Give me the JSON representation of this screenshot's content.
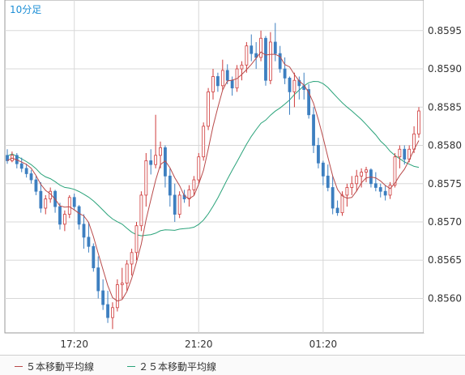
{
  "colors": {
    "up": "#cf3b3b",
    "down": "#3d7fc0",
    "ma5": "#b94a4a",
    "ma25": "#2aa37a",
    "grid": "#d8d8d8",
    "timeframe": "#1e8fd6"
  },
  "legend": [
    {
      "label": "５本移動平均線",
      "color": "#b94a4a"
    },
    {
      "label": "２５本移動平均線",
      "color": "#2aa37a"
    }
  ],
  "chart_data": {
    "type": "candlestick",
    "timeframe": "10分足",
    "x_ticks": [
      "17:20",
      "21:20",
      "01:20"
    ],
    "ylim": [
      0.85555,
      0.8599
    ],
    "y_ticks": [
      "0.8560",
      "0.8565",
      "0.8570",
      "0.8575",
      "0.8580",
      "0.8585",
      "0.8590",
      "0.8595"
    ],
    "grid": true,
    "ohlc": [
      [
        0.85787,
        0.85795,
        0.85776,
        0.8578
      ],
      [
        0.8578,
        0.85792,
        0.85778,
        0.85787
      ],
      [
        0.85787,
        0.8579,
        0.8577,
        0.85776
      ],
      [
        0.85776,
        0.85784,
        0.85765,
        0.8577
      ],
      [
        0.8577,
        0.85776,
        0.85758,
        0.85763
      ],
      [
        0.85763,
        0.85768,
        0.8575,
        0.85755
      ],
      [
        0.85755,
        0.8576,
        0.85735,
        0.8574
      ],
      [
        0.8574,
        0.85752,
        0.85712,
        0.85718
      ],
      [
        0.85718,
        0.85735,
        0.8571,
        0.8573
      ],
      [
        0.8573,
        0.85745,
        0.85725,
        0.8574
      ],
      [
        0.8574,
        0.85742,
        0.85712,
        0.8572
      ],
      [
        0.8572,
        0.85725,
        0.8569,
        0.85697
      ],
      [
        0.85697,
        0.85715,
        0.85688,
        0.8571
      ],
      [
        0.8571,
        0.85735,
        0.85705,
        0.85732
      ],
      [
        0.85732,
        0.85737,
        0.85715,
        0.8572
      ],
      [
        0.8572,
        0.85722,
        0.8569,
        0.85697
      ],
      [
        0.85697,
        0.8571,
        0.85665,
        0.8568
      ],
      [
        0.8568,
        0.857,
        0.8566,
        0.85668
      ],
      [
        0.85668,
        0.85672,
        0.85635,
        0.8564
      ],
      [
        0.8564,
        0.85655,
        0.856,
        0.8561
      ],
      [
        0.8561,
        0.85625,
        0.85585,
        0.85592
      ],
      [
        0.85592,
        0.8561,
        0.85568,
        0.85575
      ],
      [
        0.85575,
        0.85595,
        0.8556,
        0.85588
      ],
      [
        0.85588,
        0.85625,
        0.85583,
        0.85618
      ],
      [
        0.85618,
        0.8564,
        0.856,
        0.8562
      ],
      [
        0.8562,
        0.8565,
        0.8561,
        0.85645
      ],
      [
        0.85645,
        0.85665,
        0.8563,
        0.8566
      ],
      [
        0.8566,
        0.857,
        0.8565,
        0.85695
      ],
      [
        0.85695,
        0.8574,
        0.85688,
        0.85735
      ],
      [
        0.85735,
        0.8579,
        0.8572,
        0.8578
      ],
      [
        0.8578,
        0.85795,
        0.85762,
        0.85775
      ],
      [
        0.85775,
        0.8584,
        0.8577,
        0.85787
      ],
      [
        0.85787,
        0.85805,
        0.8577,
        0.85797
      ],
      [
        0.85797,
        0.858,
        0.85745,
        0.8576
      ],
      [
        0.8576,
        0.8577,
        0.8572,
        0.85735
      ],
      [
        0.85735,
        0.8575,
        0.857,
        0.8571
      ],
      [
        0.8571,
        0.8574,
        0.85705,
        0.85735
      ],
      [
        0.85735,
        0.85742,
        0.85725,
        0.8573
      ],
      [
        0.8573,
        0.85748,
        0.8572,
        0.85742
      ],
      [
        0.85742,
        0.8576,
        0.85735,
        0.85755
      ],
      [
        0.85755,
        0.8579,
        0.8575,
        0.85785
      ],
      [
        0.85785,
        0.8583,
        0.8578,
        0.85825
      ],
      [
        0.85825,
        0.85875,
        0.8582,
        0.8587
      ],
      [
        0.8587,
        0.859,
        0.8586,
        0.8589
      ],
      [
        0.8589,
        0.85895,
        0.8587,
        0.85878
      ],
      [
        0.85878,
        0.85912,
        0.85872,
        0.85898
      ],
      [
        0.85898,
        0.85906,
        0.8588,
        0.85885
      ],
      [
        0.85885,
        0.8589,
        0.85865,
        0.85875
      ],
      [
        0.85875,
        0.85905,
        0.8587,
        0.859
      ],
      [
        0.859,
        0.8591,
        0.85885,
        0.85905
      ],
      [
        0.85905,
        0.85935,
        0.85895,
        0.8593
      ],
      [
        0.8593,
        0.85945,
        0.8591,
        0.8592
      ],
      [
        0.8592,
        0.85935,
        0.859,
        0.85915
      ],
      [
        0.85915,
        0.8595,
        0.8591,
        0.8594
      ],
      [
        0.8594,
        0.85943,
        0.85878,
        0.85885
      ],
      [
        0.85885,
        0.85948,
        0.8588,
        0.85935
      ],
      [
        0.85935,
        0.8596,
        0.8591,
        0.8592
      ],
      [
        0.8592,
        0.8593,
        0.85895,
        0.859
      ],
      [
        0.859,
        0.85915,
        0.8588,
        0.85888
      ],
      [
        0.85888,
        0.8589,
        0.8584,
        0.8587
      ],
      [
        0.8587,
        0.85895,
        0.8585,
        0.85885
      ],
      [
        0.85885,
        0.8589,
        0.8586,
        0.85878
      ],
      [
        0.85878,
        0.85895,
        0.8586,
        0.85873
      ],
      [
        0.85873,
        0.8588,
        0.85835,
        0.8584
      ],
      [
        0.8584,
        0.8585,
        0.8579,
        0.858
      ],
      [
        0.858,
        0.8581,
        0.8577,
        0.85777
      ],
      [
        0.85777,
        0.8578,
        0.85748,
        0.8576
      ],
      [
        0.8576,
        0.85775,
        0.8574,
        0.85745
      ],
      [
        0.85745,
        0.8576,
        0.8571,
        0.85718
      ],
      [
        0.85718,
        0.85728,
        0.85708,
        0.85712
      ],
      [
        0.85712,
        0.8574,
        0.85708,
        0.85735
      ],
      [
        0.85735,
        0.8575,
        0.8572,
        0.85745
      ],
      [
        0.85745,
        0.8576,
        0.85735,
        0.8575
      ],
      [
        0.8575,
        0.85768,
        0.8574,
        0.8576
      ],
      [
        0.8576,
        0.8577,
        0.85745,
        0.85765
      ],
      [
        0.85765,
        0.85772,
        0.85752,
        0.85768
      ],
      [
        0.85768,
        0.8577,
        0.85745,
        0.8575
      ],
      [
        0.8575,
        0.85765,
        0.8574,
        0.85745
      ],
      [
        0.85745,
        0.8575,
        0.85732,
        0.8574
      ],
      [
        0.8574,
        0.85748,
        0.85728,
        0.85735
      ],
      [
        0.85735,
        0.85752,
        0.8573,
        0.85748
      ],
      [
        0.85748,
        0.8579,
        0.85745,
        0.85785
      ],
      [
        0.85785,
        0.858,
        0.8577,
        0.85795
      ],
      [
        0.85795,
        0.858,
        0.85775,
        0.85782
      ],
      [
        0.85782,
        0.858,
        0.85778,
        0.85795
      ],
      [
        0.85795,
        0.85825,
        0.8579,
        0.85815
      ],
      [
        0.85815,
        0.8585,
        0.8581,
        0.85845
      ]
    ],
    "series": [
      {
        "name": "５本移動平均線",
        "source": "ma5"
      },
      {
        "name": "２５本移動平均線",
        "source": "ma25"
      }
    ]
  }
}
